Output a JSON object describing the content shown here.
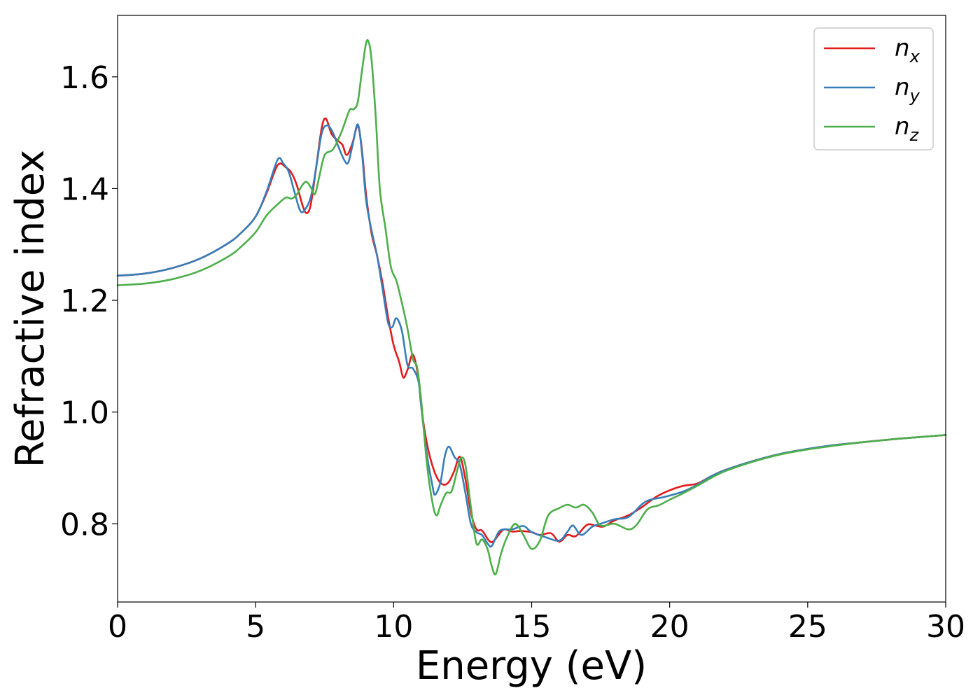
{
  "chart_data": {
    "type": "line",
    "title": "",
    "xlabel": "Energy (eV)",
    "ylabel": "Refractive index",
    "xlim": [
      0,
      30
    ],
    "ylim": [
      0.66,
      1.71
    ],
    "xticks": [
      0,
      5,
      10,
      15,
      20,
      25,
      30
    ],
    "yticks": [
      0.8,
      1.0,
      1.2,
      1.4,
      1.6
    ],
    "xtick_labels": [
      "0",
      "5",
      "10",
      "15",
      "20",
      "25",
      "30"
    ],
    "ytick_labels": [
      "0.8",
      "1.0",
      "1.2",
      "1.4",
      "1.6"
    ],
    "grid": false,
    "legend_position": "top-right",
    "series": [
      {
        "name": "n_x",
        "label_base": "n",
        "label_sub": "x",
        "color": "#e41a1c",
        "points": [
          [
            0,
            1.244
          ],
          [
            1,
            1.248
          ],
          [
            2,
            1.258
          ],
          [
            3,
            1.275
          ],
          [
            4,
            1.302
          ],
          [
            4.5,
            1.322
          ],
          [
            5,
            1.35
          ],
          [
            5.4,
            1.392
          ],
          [
            5.8,
            1.442
          ],
          [
            6.1,
            1.438
          ],
          [
            6.3,
            1.428
          ],
          [
            6.5,
            1.405
          ],
          [
            6.7,
            1.37
          ],
          [
            6.85,
            1.356
          ],
          [
            7.0,
            1.372
          ],
          [
            7.2,
            1.44
          ],
          [
            7.4,
            1.51
          ],
          [
            7.55,
            1.525
          ],
          [
            7.75,
            1.498
          ],
          [
            8.0,
            1.485
          ],
          [
            8.15,
            1.478
          ],
          [
            8.3,
            1.46
          ],
          [
            8.5,
            1.48
          ],
          [
            8.7,
            1.512
          ],
          [
            8.85,
            1.47
          ],
          [
            9.0,
            1.39
          ],
          [
            9.2,
            1.32
          ],
          [
            9.4,
            1.28
          ],
          [
            9.6,
            1.23
          ],
          [
            9.8,
            1.17
          ],
          [
            10.0,
            1.12
          ],
          [
            10.2,
            1.09
          ],
          [
            10.35,
            1.062
          ],
          [
            10.5,
            1.075
          ],
          [
            10.7,
            1.103
          ],
          [
            10.9,
            1.06
          ],
          [
            11.0,
            1.01
          ],
          [
            11.2,
            0.945
          ],
          [
            11.4,
            0.905
          ],
          [
            11.6,
            0.88
          ],
          [
            11.8,
            0.87
          ],
          [
            12.0,
            0.875
          ],
          [
            12.2,
            0.895
          ],
          [
            12.4,
            0.92
          ],
          [
            12.6,
            0.88
          ],
          [
            12.8,
            0.82
          ],
          [
            13.0,
            0.79
          ],
          [
            13.2,
            0.788
          ],
          [
            13.45,
            0.77
          ],
          [
            13.6,
            0.768
          ],
          [
            13.8,
            0.78
          ],
          [
            14.0,
            0.79
          ],
          [
            14.3,
            0.786
          ],
          [
            14.6,
            0.787
          ],
          [
            15.0,
            0.785
          ],
          [
            15.3,
            0.78
          ],
          [
            15.7,
            0.783
          ],
          [
            16.0,
            0.768
          ],
          [
            16.3,
            0.78
          ],
          [
            16.6,
            0.778
          ],
          [
            17.0,
            0.798
          ],
          [
            17.3,
            0.797
          ],
          [
            17.6,
            0.795
          ],
          [
            18.0,
            0.806
          ],
          [
            18.5,
            0.815
          ],
          [
            19.0,
            0.83
          ],
          [
            19.5,
            0.848
          ],
          [
            20.0,
            0.86
          ],
          [
            20.5,
            0.868
          ],
          [
            21.0,
            0.872
          ],
          [
            21.5,
            0.885
          ],
          [
            22,
            0.896
          ],
          [
            23,
            0.912
          ],
          [
            24,
            0.925
          ],
          [
            25,
            0.934
          ],
          [
            26,
            0.941
          ],
          [
            27,
            0.946
          ],
          [
            28,
            0.951
          ],
          [
            29,
            0.955
          ],
          [
            30,
            0.959
          ]
        ]
      },
      {
        "name": "n_y",
        "label_base": "n",
        "label_sub": "y",
        "color": "#377eb8",
        "points": [
          [
            0,
            1.244
          ],
          [
            1,
            1.248
          ],
          [
            2,
            1.258
          ],
          [
            3,
            1.275
          ],
          [
            4,
            1.302
          ],
          [
            4.5,
            1.322
          ],
          [
            5,
            1.35
          ],
          [
            5.4,
            1.395
          ],
          [
            5.8,
            1.452
          ],
          [
            6.0,
            1.445
          ],
          [
            6.2,
            1.43
          ],
          [
            6.4,
            1.395
          ],
          [
            6.6,
            1.362
          ],
          [
            6.75,
            1.36
          ],
          [
            7.0,
            1.385
          ],
          [
            7.2,
            1.44
          ],
          [
            7.4,
            1.5
          ],
          [
            7.6,
            1.513
          ],
          [
            7.8,
            1.5
          ],
          [
            8.0,
            1.475
          ],
          [
            8.2,
            1.452
          ],
          [
            8.35,
            1.446
          ],
          [
            8.5,
            1.475
          ],
          [
            8.7,
            1.515
          ],
          [
            8.85,
            1.465
          ],
          [
            9.0,
            1.38
          ],
          [
            9.2,
            1.325
          ],
          [
            9.4,
            1.28
          ],
          [
            9.6,
            1.22
          ],
          [
            9.8,
            1.16
          ],
          [
            9.95,
            1.152
          ],
          [
            10.1,
            1.168
          ],
          [
            10.3,
            1.145
          ],
          [
            10.5,
            1.085
          ],
          [
            10.7,
            1.078
          ],
          [
            10.9,
            1.055
          ],
          [
            11.0,
            1.01
          ],
          [
            11.2,
            0.925
          ],
          [
            11.4,
            0.87
          ],
          [
            11.5,
            0.852
          ],
          [
            11.7,
            0.875
          ],
          [
            11.85,
            0.92
          ],
          [
            12.0,
            0.938
          ],
          [
            12.2,
            0.92
          ],
          [
            12.4,
            0.905
          ],
          [
            12.6,
            0.855
          ],
          [
            12.8,
            0.8
          ],
          [
            13.0,
            0.785
          ],
          [
            13.2,
            0.78
          ],
          [
            13.4,
            0.765
          ],
          [
            13.55,
            0.76
          ],
          [
            13.8,
            0.785
          ],
          [
            14.0,
            0.79
          ],
          [
            14.3,
            0.79
          ],
          [
            14.7,
            0.796
          ],
          [
            15.0,
            0.785
          ],
          [
            15.5,
            0.776
          ],
          [
            16.0,
            0.77
          ],
          [
            16.3,
            0.786
          ],
          [
            16.5,
            0.797
          ],
          [
            16.8,
            0.78
          ],
          [
            17.2,
            0.795
          ],
          [
            17.5,
            0.8
          ],
          [
            18.0,
            0.808
          ],
          [
            18.5,
            0.812
          ],
          [
            19.0,
            0.835
          ],
          [
            19.3,
            0.843
          ],
          [
            19.8,
            0.848
          ],
          [
            20.5,
            0.858
          ],
          [
            21.0,
            0.87
          ],
          [
            21.5,
            0.885
          ],
          [
            22,
            0.896
          ],
          [
            23,
            0.912
          ],
          [
            24,
            0.925
          ],
          [
            25,
            0.934
          ],
          [
            26,
            0.941
          ],
          [
            27,
            0.946
          ],
          [
            28,
            0.951
          ],
          [
            29,
            0.955
          ],
          [
            30,
            0.959
          ]
        ]
      },
      {
        "name": "n_z",
        "label_base": "n",
        "label_sub": "z",
        "color": "#4daf4a",
        "points": [
          [
            0,
            1.227
          ],
          [
            1,
            1.23
          ],
          [
            2,
            1.238
          ],
          [
            3,
            1.253
          ],
          [
            4,
            1.278
          ],
          [
            4.5,
            1.297
          ],
          [
            5,
            1.322
          ],
          [
            5.4,
            1.352
          ],
          [
            5.8,
            1.372
          ],
          [
            6.1,
            1.384
          ],
          [
            6.3,
            1.382
          ],
          [
            6.5,
            1.39
          ],
          [
            6.7,
            1.407
          ],
          [
            6.85,
            1.412
          ],
          [
            7.0,
            1.402
          ],
          [
            7.15,
            1.39
          ],
          [
            7.3,
            1.42
          ],
          [
            7.5,
            1.46
          ],
          [
            7.8,
            1.47
          ],
          [
            8.1,
            1.5
          ],
          [
            8.4,
            1.54
          ],
          [
            8.55,
            1.542
          ],
          [
            8.7,
            1.555
          ],
          [
            8.85,
            1.61
          ],
          [
            9.0,
            1.66
          ],
          [
            9.1,
            1.662
          ],
          [
            9.2,
            1.63
          ],
          [
            9.35,
            1.53
          ],
          [
            9.5,
            1.4
          ],
          [
            9.7,
            1.33
          ],
          [
            9.9,
            1.26
          ],
          [
            10.1,
            1.235
          ],
          [
            10.3,
            1.195
          ],
          [
            10.5,
            1.15
          ],
          [
            10.7,
            1.095
          ],
          [
            10.85,
            1.08
          ],
          [
            11.0,
            1.02
          ],
          [
            11.2,
            0.91
          ],
          [
            11.4,
            0.84
          ],
          [
            11.55,
            0.815
          ],
          [
            11.7,
            0.833
          ],
          [
            11.9,
            0.855
          ],
          [
            12.1,
            0.858
          ],
          [
            12.3,
            0.895
          ],
          [
            12.45,
            0.918
          ],
          [
            12.6,
            0.905
          ],
          [
            12.8,
            0.83
          ],
          [
            13.0,
            0.765
          ],
          [
            13.2,
            0.772
          ],
          [
            13.4,
            0.755
          ],
          [
            13.55,
            0.725
          ],
          [
            13.7,
            0.71
          ],
          [
            13.9,
            0.748
          ],
          [
            14.1,
            0.775
          ],
          [
            14.4,
            0.8
          ],
          [
            14.7,
            0.78
          ],
          [
            15.0,
            0.755
          ],
          [
            15.3,
            0.77
          ],
          [
            15.6,
            0.815
          ],
          [
            16.0,
            0.828
          ],
          [
            16.3,
            0.834
          ],
          [
            16.6,
            0.829
          ],
          [
            16.9,
            0.834
          ],
          [
            17.2,
            0.82
          ],
          [
            17.5,
            0.797
          ],
          [
            18.0,
            0.8
          ],
          [
            18.5,
            0.79
          ],
          [
            18.8,
            0.798
          ],
          [
            19.2,
            0.826
          ],
          [
            19.6,
            0.833
          ],
          [
            20.0,
            0.843
          ],
          [
            20.5,
            0.855
          ],
          [
            21.0,
            0.868
          ],
          [
            21.5,
            0.882
          ],
          [
            22,
            0.894
          ],
          [
            23,
            0.911
          ],
          [
            24,
            0.924
          ],
          [
            25,
            0.933
          ],
          [
            26,
            0.94
          ],
          [
            27,
            0.946
          ],
          [
            28,
            0.951
          ],
          [
            29,
            0.955
          ],
          [
            30,
            0.959
          ]
        ]
      }
    ]
  }
}
